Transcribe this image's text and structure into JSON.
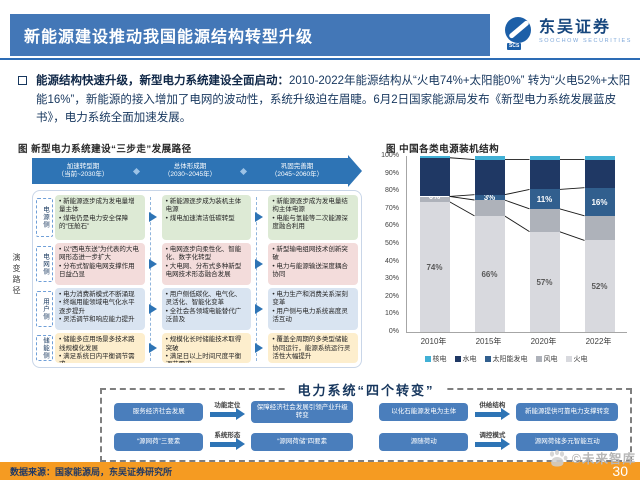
{
  "header": {
    "title": "新能源建设推动我国能源结构转型升级",
    "brand": {
      "name": "东吴证券",
      "subtitle": "SOOCHOW SECURITIES",
      "badge": "SCS"
    }
  },
  "intro": {
    "lead": "能源结构快速升级，新型电力系统建设全面启动：",
    "text": "2010-2022年能源结构从“火电74%+太阳能0%” 转为“火电52%+太阳能16%”，新能源的接入增加了电网的波动性，系统升级迫在眉睫。6月2日国家能源局发布《新型电力系统发展蓝皮书》，电力系统全面加速发展。"
  },
  "roadmap": {
    "title": "图  新型电力系统建设“三步走”发展路径",
    "evolution_label": "演变路径",
    "phases": [
      "加速转型期\n（当前~2030年）",
      "总体形成期\n（2030~2045年）",
      "巩固完善期\n（2045~2060年）"
    ],
    "rows": [
      {
        "label": "电源侧",
        "cells": [
          "• 新能源逐步成为发电量增量主体\n• 煤电仍是电力安全保障的“压舱石”",
          "• 新能源逐步成为装机主体电源\n• 煤电加速清洁低碳转型",
          "• 新能源逐步成为发电量结构主体电源\n• 电能与氢能等二次能源深度融合利用"
        ]
      },
      {
        "label": "电网侧",
        "cells": [
          "• 以“西电东送”为代表的大电网形态进一步扩大\n• 分布式智能电网支撑作用日益凸显",
          "• 电网逐步向柔性化、智能化、数字化转型\n• 大电网、分布式多种新型电网技术形态融合发展",
          "• 新型输电组网技术创新突破\n• 电力与能源输送深度耦合协同"
        ]
      },
      {
        "label": "用户侧",
        "cells": [
          "• 电力消费新模式不断涌现\n• 终端用能领域电气化水平逐步提升\n• 灵活调节和响应能力提升",
          "• 用户侧低碳化、电气化、灵活化、智能化变革\n• 全社会各领域电能替代广泛普及",
          "• 电力生产和消费关系深刻变革\n• 用户侧与电力系统高度灵活互动"
        ]
      },
      {
        "label": "储能侧",
        "cells": [
          "• 储能多应用场景多技术路线规模化发展\n• 满足系统日内平衡调节需求",
          "• 规模化长时储能技术取得突破\n• 满足日以上时间尺度平衡调节需求",
          "• 覆盖全周期的多类型储能协同运行，能源系统运行灵活性大幅提升"
        ]
      }
    ]
  },
  "chart_data": {
    "type": "bar",
    "stacked": true,
    "title": "图  中国各类电源装机结构",
    "categories": [
      "2010年",
      "2015年",
      "2020年",
      "2022年"
    ],
    "series": [
      {
        "name": "火电",
        "color": "#d8d9de",
        "values": [
          74,
          66,
          57,
          52
        ],
        "labels": [
          "74%",
          "66%",
          "57%",
          "52%"
        ],
        "label_color": "#595959"
      },
      {
        "name": "风电",
        "color": "#aeb2ba",
        "values": [
          3,
          9,
          13,
          14
        ]
      },
      {
        "name": "太阳能发电",
        "color": "#315f8e",
        "values": [
          0,
          3,
          11,
          16
        ],
        "labels": [
          "0%",
          "3%",
          "11%",
          "16%"
        ],
        "label_color": "#ffffff"
      },
      {
        "name": "水电",
        "color": "#1f3864",
        "values": [
          22,
          20,
          17,
          16
        ]
      },
      {
        "name": "核电",
        "color": "#41b0d5",
        "values": [
          1,
          2,
          2,
          2
        ]
      }
    ],
    "ylim": [
      0,
      100
    ],
    "yticks": [
      "0%",
      "10%",
      "20%",
      "30%",
      "40%",
      "50%",
      "60%",
      "70%",
      "80%",
      "90%",
      "100%"
    ],
    "legend": [
      "核电",
      "水电",
      "太阳能发电",
      "风电",
      "火电"
    ],
    "grid": false,
    "legend_position": "bottom",
    "series_connector_lines": true
  },
  "transforms": {
    "title": "电力系统“四个转变”",
    "items": [
      {
        "from": "服务经济社会发展",
        "label": "功能定位",
        "to": "保障经济社会发展引领产业升级转变"
      },
      {
        "from": "“源网荷”三要素",
        "label": "系统形态",
        "to": "“源网荷储”四要素"
      },
      {
        "from": "以化石能源发电为主体",
        "label": "供给结构",
        "to": "新能源提供可靠电力支撑转变"
      },
      {
        "from": "源随荷动",
        "label": "调控模式",
        "to": "源网荷储多元智能互动"
      }
    ]
  },
  "watermark": {
    "text": "©未来智库"
  },
  "footer": {
    "source": "数据来源：国家能源局，东吴证券研究所",
    "page": "30"
  }
}
